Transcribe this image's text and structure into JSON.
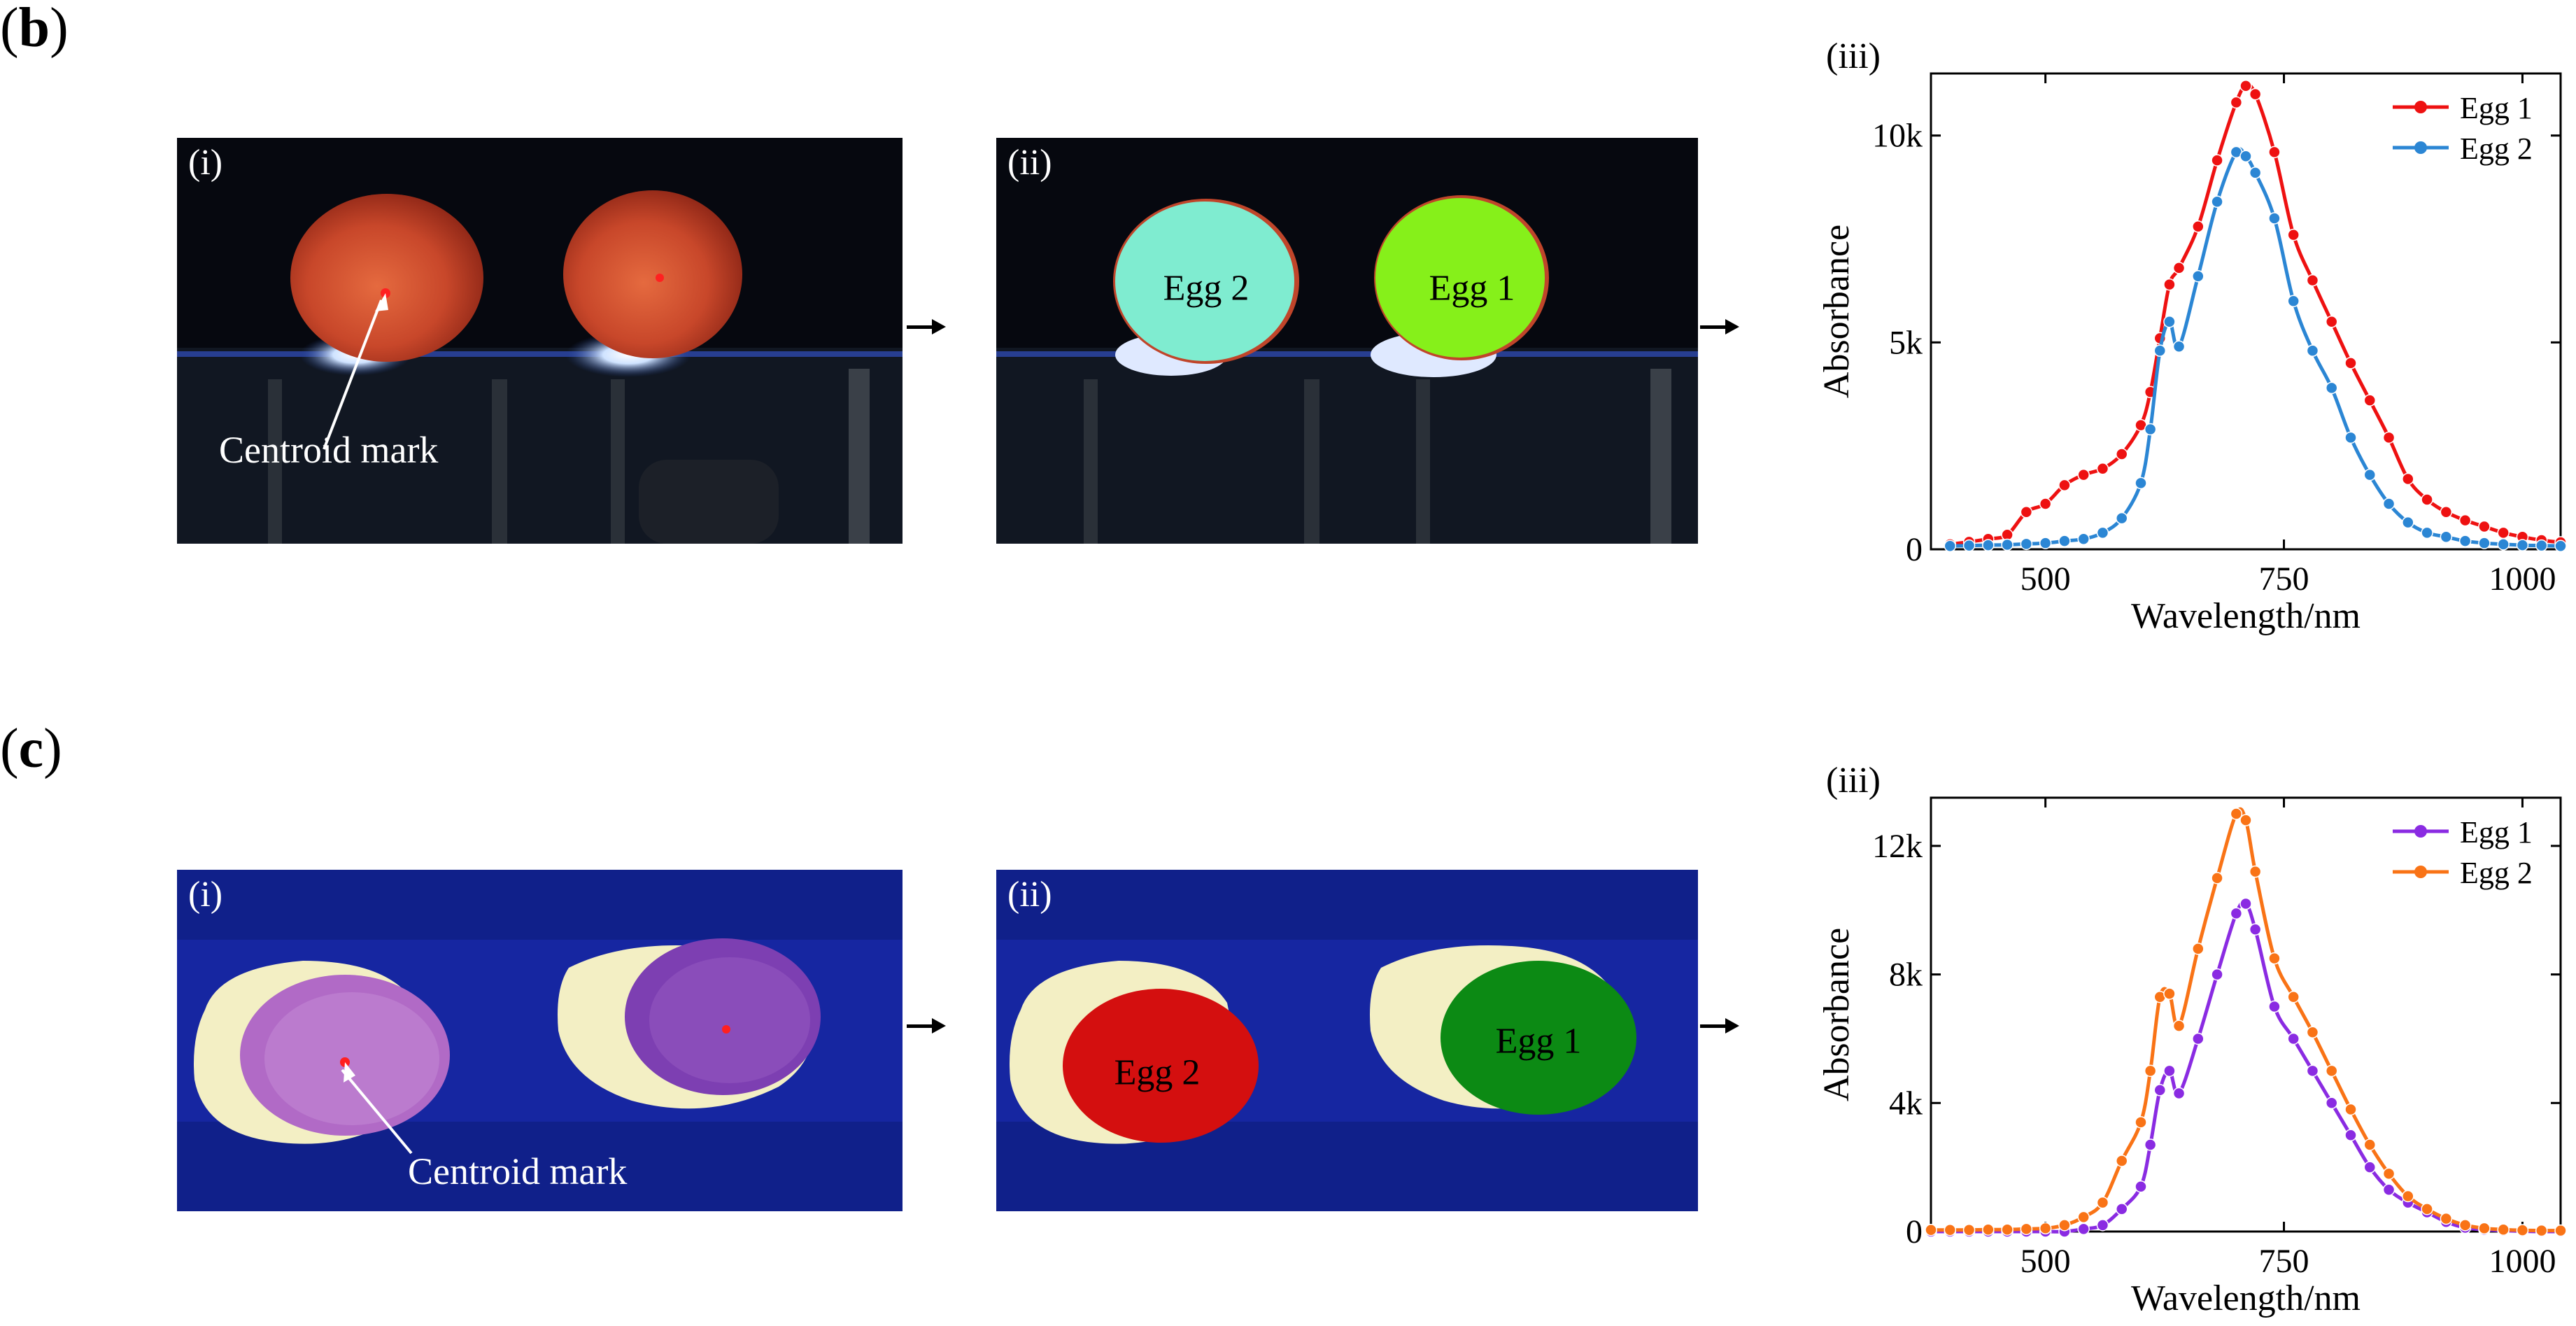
{
  "panel_b": {
    "label_letter": "b",
    "image_i": {
      "label": "(i)",
      "annotation": "Centroid mark"
    },
    "image_ii": {
      "label": "(ii)",
      "egg_left": "Egg 2",
      "egg_right": "Egg 1"
    },
    "colors": {
      "egg_shell": "#c0452a",
      "mask_egg2": "#7fecd0",
      "mask_egg1": "#86f01a",
      "background": "#0a0e1a"
    }
  },
  "panel_c": {
    "label_letter": "c",
    "image_i": {
      "label": "(i)",
      "annotation": "Centroid mark"
    },
    "image_ii": {
      "label": "(ii)",
      "egg_left": "Egg 2",
      "egg_right": "Egg 1"
    },
    "colors": {
      "egg_shell": "#9b4fb0",
      "mask_egg2": "#d40f0f",
      "mask_egg1": "#0c8a14",
      "background": "#10208a"
    }
  },
  "chart_data": [
    {
      "id": "b-iii",
      "type": "line",
      "panel_label": "(iii)",
      "xlabel": "Wavelength/nm",
      "ylabel": "Absorbance",
      "xlim": [
        380,
        1040
      ],
      "ylim": [
        0,
        11500
      ],
      "xticks": [
        500,
        750,
        1000
      ],
      "yticks": [
        {
          "v": 0,
          "t": "0"
        },
        {
          "v": 5000,
          "t": "5k"
        },
        {
          "v": 10000,
          "t": "10k"
        }
      ],
      "legend_position": "top-right",
      "series": [
        {
          "name": "Egg 1",
          "color": "#ee1111",
          "x": [
            400,
            420,
            440,
            460,
            480,
            500,
            520,
            540,
            560,
            580,
            600,
            610,
            620,
            630,
            640,
            660,
            680,
            700,
            710,
            720,
            740,
            760,
            780,
            800,
            820,
            840,
            860,
            880,
            900,
            920,
            940,
            960,
            980,
            1000,
            1020,
            1040
          ],
          "y": [
            120,
            180,
            250,
            350,
            900,
            1100,
            1550,
            1800,
            1950,
            2300,
            3000,
            3800,
            5100,
            6400,
            6800,
            7800,
            9400,
            10800,
            11200,
            11000,
            9600,
            7600,
            6500,
            5500,
            4500,
            3600,
            2700,
            1700,
            1200,
            900,
            700,
            550,
            400,
            300,
            220,
            170
          ]
        },
        {
          "name": "Egg 2",
          "color": "#2b86d4",
          "x": [
            400,
            420,
            440,
            460,
            480,
            500,
            520,
            540,
            560,
            580,
            600,
            610,
            620,
            630,
            640,
            660,
            680,
            700,
            710,
            720,
            740,
            760,
            780,
            800,
            820,
            840,
            860,
            880,
            900,
            920,
            940,
            960,
            980,
            1000,
            1020,
            1040
          ],
          "y": [
            80,
            90,
            100,
            110,
            130,
            150,
            200,
            250,
            400,
            750,
            1600,
            2900,
            4800,
            5500,
            4900,
            6600,
            8400,
            9600,
            9500,
            9100,
            8000,
            6000,
            4800,
            3900,
            2700,
            1800,
            1100,
            650,
            400,
            300,
            200,
            150,
            120,
            100,
            90,
            80
          ]
        }
      ]
    },
    {
      "id": "c-iii",
      "type": "line",
      "panel_label": "(iii)",
      "xlabel": "Wavelength/nm",
      "ylabel": "Absorbance",
      "xlim": [
        380,
        1040
      ],
      "ylim": [
        0,
        13500
      ],
      "xticks": [
        500,
        750,
        1000
      ],
      "yticks": [
        {
          "v": 0,
          "t": "0"
        },
        {
          "v": 4000,
          "t": "4k"
        },
        {
          "v": 8000,
          "t": "8k"
        },
        {
          "v": 12000,
          "t": "12k"
        }
      ],
      "legend_position": "top-right",
      "series": [
        {
          "name": "Egg 1",
          "color": "#8a2be2",
          "x": [
            380,
            400,
            420,
            440,
            460,
            480,
            500,
            520,
            540,
            560,
            580,
            600,
            610,
            620,
            630,
            640,
            660,
            680,
            700,
            710,
            720,
            740,
            760,
            780,
            800,
            820,
            840,
            860,
            880,
            900,
            920,
            940,
            960,
            980,
            1000,
            1020,
            1040
          ],
          "y": [
            0,
            0,
            0,
            0,
            0,
            0,
            0,
            0,
            80,
            200,
            700,
            1400,
            2700,
            4400,
            5000,
            4300,
            6000,
            8000,
            9900,
            10200,
            9400,
            7000,
            6000,
            5000,
            4000,
            3000,
            2000,
            1300,
            900,
            600,
            300,
            120,
            60,
            30,
            10,
            0,
            0
          ]
        },
        {
          "name": "Egg 2",
          "color": "#f97316",
          "x": [
            380,
            400,
            420,
            440,
            460,
            480,
            500,
            520,
            540,
            560,
            580,
            600,
            610,
            620,
            630,
            640,
            660,
            680,
            700,
            710,
            720,
            740,
            760,
            780,
            800,
            820,
            840,
            860,
            880,
            900,
            920,
            940,
            960,
            980,
            1000,
            1020,
            1040
          ],
          "y": [
            50,
            50,
            50,
            60,
            60,
            80,
            100,
            200,
            450,
            900,
            2200,
            3400,
            5000,
            7300,
            7400,
            6400,
            8800,
            11000,
            13000,
            12800,
            11200,
            8500,
            7300,
            6200,
            5000,
            3800,
            2700,
            1800,
            1100,
            700,
            400,
            200,
            100,
            60,
            40,
            30,
            30
          ]
        }
      ]
    }
  ]
}
